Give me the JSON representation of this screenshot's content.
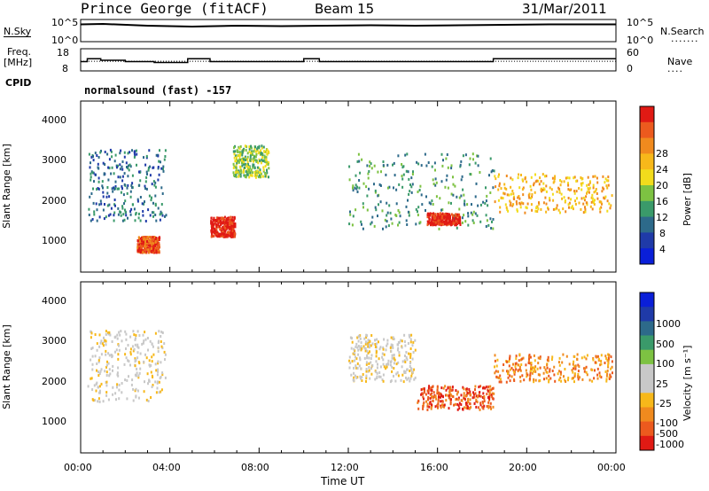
{
  "header": {
    "site": "Prince George (fitACF)",
    "beam": "Beam 15",
    "date": "31/Mar/2011"
  },
  "strips": {
    "nsky_label": "N.Sky",
    "nsky_ticks": [
      "10^5",
      "10^0"
    ],
    "nsearch_label": "N.Search",
    "nsearch_ticks": [
      "10^5",
      "10^0"
    ],
    "freq_label": "Freq.",
    "freq_unit": "[MHz]",
    "freq_ticks": [
      "18",
      "8"
    ],
    "nave_label": "Nave",
    "nave_ticks": [
      "60",
      "0"
    ],
    "cpid_label": "CPID",
    "cpid_value": "normalsound (fast) -157"
  },
  "colors": {
    "power": [
      "#0a1fd8",
      "#1f3aa8",
      "#2d6a8a",
      "#3a9a6a",
      "#7dc242",
      "#f2dc1c",
      "#f7b81a",
      "#f08a1e",
      "#ec5a1e",
      "#e01a14"
    ],
    "velocity": [
      "#e01a14",
      "#ec5a1e",
      "#f08a1e",
      "#f7b81a",
      "#c8c8c8",
      "#c8c8c8",
      "#7dc242",
      "#3a9a6a",
      "#2d6a8a",
      "#1f3aa8",
      "#0a1fd8"
    ]
  },
  "chart_data": [
    {
      "type": "line",
      "title": "N.Sky / N.Search",
      "x_range_hours": [
        0,
        24
      ],
      "series": [
        {
          "name": "N.Sky",
          "x": [
            0,
            1,
            3,
            5,
            7,
            9,
            11,
            13,
            15,
            17,
            19,
            21,
            23,
            24
          ],
          "y_log10": [
            3.9,
            4.0,
            3.6,
            3.4,
            3.6,
            3.5,
            3.6,
            3.7,
            3.6,
            3.7,
            3.8,
            3.9,
            3.9,
            3.9
          ]
        }
      ],
      "ylim_log10": [
        0,
        5
      ]
    },
    {
      "type": "line",
      "title": "Freq. / Nave",
      "series": [
        {
          "name": "Freq.",
          "x": [
            0,
            0.3,
            0.9,
            2.0,
            3.0,
            3.3,
            3.8,
            4.8,
            5.8,
            8.6,
            10.0,
            10.7,
            18.5,
            24
          ],
          "y": [
            12.2,
            13.5,
            12.8,
            12.2,
            12.2,
            11.8,
            11.8,
            13.5,
            12.2,
            12.2,
            13.5,
            12.2,
            13.5,
            13.5
          ]
        },
        {
          "name": "Nave",
          "x": [
            0,
            24
          ],
          "y": [
            26,
            26
          ]
        }
      ],
      "freq_ylim": [
        8,
        18
      ],
      "nave_ylim": [
        0,
        60
      ]
    },
    {
      "type": "heatmap",
      "panel": "power",
      "ylabel": "Slant Range [km]",
      "colorbar_label": "Power [dB]",
      "colorbar_ticks": [
        "28",
        "24",
        "20",
        "16",
        "12",
        "8",
        "4"
      ],
      "y_ticks": [
        "4000",
        "3000",
        "2000",
        "1000"
      ],
      "ylim_km": [
        180,
        4500
      ],
      "x_range_hours": [
        0,
        24
      ],
      "features": [
        {
          "x": [
            0.3,
            3.8
          ],
          "y": [
            1500,
            3300
          ],
          "level": 2
        },
        {
          "x": [
            2.5,
            3.5
          ],
          "y": [
            700,
            1100
          ],
          "level": 8
        },
        {
          "x": [
            5.8,
            6.9
          ],
          "y": [
            1100,
            1600
          ],
          "level": 9
        },
        {
          "x": [
            6.8,
            8.4
          ],
          "y": [
            2600,
            3400
          ],
          "level": 4
        },
        {
          "x": [
            12.0,
            18.5
          ],
          "y": [
            1300,
            3200
          ],
          "level": 3
        },
        {
          "x": [
            15.5,
            17.0
          ],
          "y": [
            1400,
            1700
          ],
          "level": 9
        },
        {
          "x": [
            18.5,
            23.8
          ],
          "y": [
            1700,
            2700
          ],
          "level": 6
        }
      ]
    },
    {
      "type": "heatmap",
      "panel": "velocity",
      "ylabel": "Slant Range [km]",
      "colorbar_label": "Velocity [m s⁻¹]",
      "colorbar_ticks": [
        "1000",
        "500",
        "100",
        "25",
        "-25",
        "-100",
        "-500",
        "-1000"
      ],
      "y_ticks": [
        "4000",
        "3000",
        "2000",
        "1000"
      ],
      "ylim_km": [
        180,
        4500
      ],
      "x_range_hours": [
        0,
        24
      ],
      "features": [
        {
          "x": [
            0.3,
            3.8
          ],
          "y": [
            1500,
            3300
          ],
          "level": 4
        },
        {
          "x": [
            12.0,
            15.0
          ],
          "y": [
            2000,
            3200
          ],
          "level": 4
        },
        {
          "x": [
            15.0,
            18.5
          ],
          "y": [
            1300,
            1900
          ],
          "level": 1
        },
        {
          "x": [
            18.5,
            23.8
          ],
          "y": [
            2000,
            2700
          ],
          "level": 2
        }
      ]
    }
  ],
  "axes": {
    "x_tick_labels": [
      "00:00",
      "04:00",
      "08:00",
      "12:00",
      "16:00",
      "20:00",
      "00:00"
    ],
    "xlabel": "Time UT"
  }
}
